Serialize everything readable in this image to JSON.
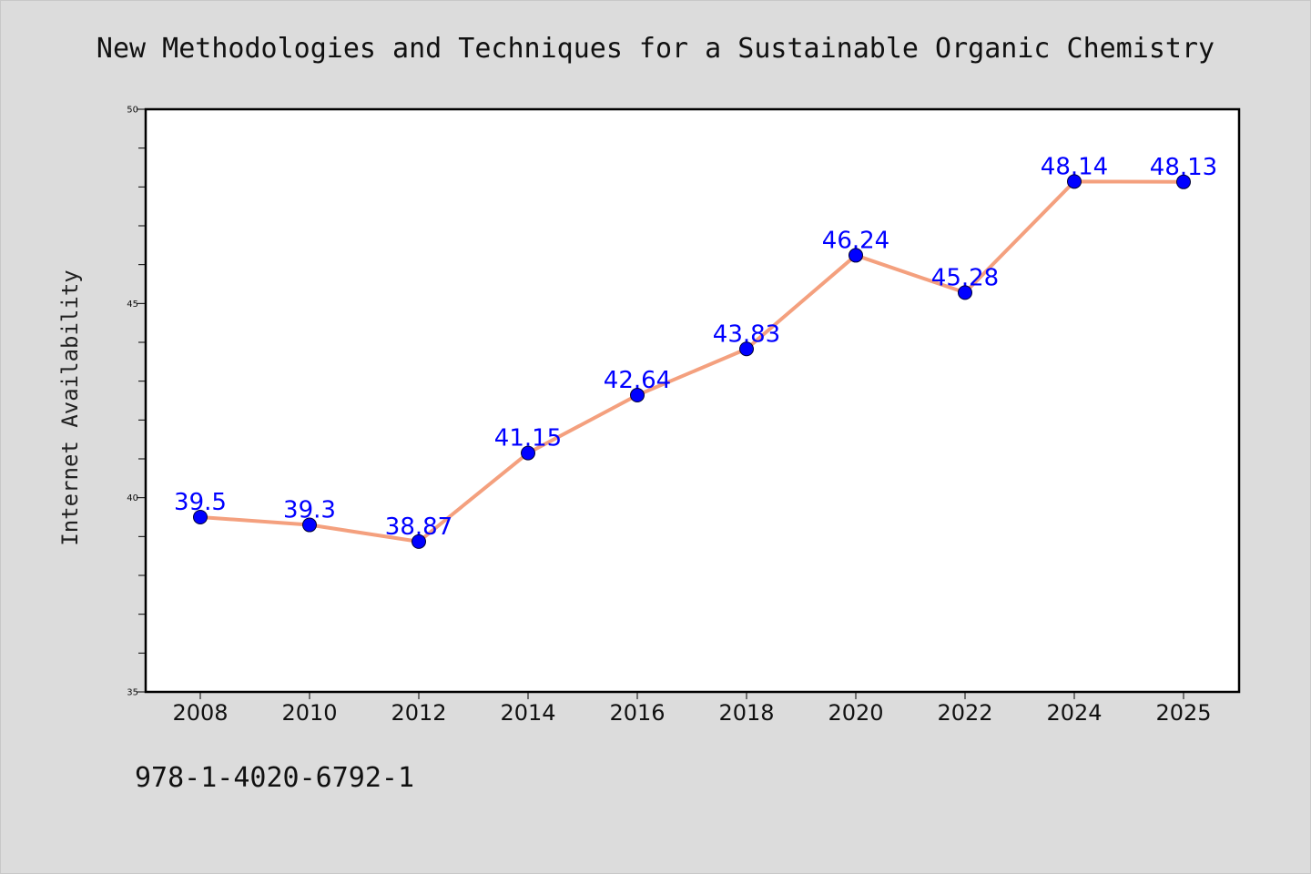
{
  "chart_data": {
    "type": "line",
    "title": "New Methodologies and Techniques for a Sustainable Organic Chemistry",
    "xlabel": "",
    "ylabel": "Internet Availability",
    "categories": [
      "2008",
      "2010",
      "2012",
      "2014",
      "2016",
      "2018",
      "2020",
      "2022",
      "2024",
      "2025"
    ],
    "series": [
      {
        "values": [
          39.5,
          39.3,
          38.87,
          41.15,
          42.64,
          43.83,
          46.24,
          45.28,
          48.14,
          48.13
        ],
        "data_labels": [
          "39.5",
          "39.3",
          "38.87",
          "41.15",
          "42.64",
          "43.83",
          "46.24",
          "45.28",
          "48.14",
          "48.13"
        ]
      }
    ],
    "ylim": [
      35,
      50
    ],
    "yticks": [
      "35",
      "40",
      "45",
      "50"
    ],
    "grid": false,
    "legend": "none",
    "line_color": "#f4a07e",
    "marker_color": "#0000ff",
    "label_color": "#0000ff"
  },
  "footnote": "978-1-4020-6792-1"
}
